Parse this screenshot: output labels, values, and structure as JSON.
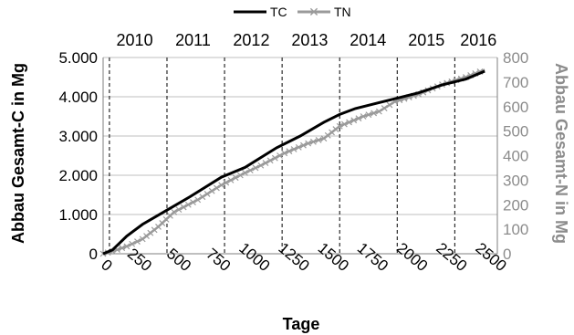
{
  "chart_data": {
    "type": "line",
    "title": "",
    "xlabel": "Tage",
    "ylabel_left": "Abbau Gesamt-C in Mg",
    "ylabel_right": "Abbau Gesamt-N in Mg",
    "xlim": [
      0,
      2500
    ],
    "ylim_left": [
      0,
      5000
    ],
    "ylim_right": [
      0,
      800
    ],
    "x_ticks": [
      0,
      250,
      500,
      750,
      1000,
      1250,
      1500,
      1750,
      2000,
      2250,
      2500
    ],
    "x_tick_labels": [
      "0",
      "250",
      "500",
      "750",
      "1000",
      "1250",
      "1500",
      "1750",
      "2000",
      "2250",
      "2500"
    ],
    "y_left_ticks": [
      0,
      1000,
      2000,
      3000,
      4000,
      5000
    ],
    "y_left_tick_labels": [
      "0",
      "1.000",
      "2.000",
      "3.000",
      "4.000",
      "5.000"
    ],
    "y_right_ticks": [
      0,
      100,
      200,
      300,
      400,
      500,
      600,
      700,
      800
    ],
    "y_right_tick_labels": [
      "0",
      "100",
      "200",
      "300",
      "400",
      "500",
      "600",
      "700",
      "800"
    ],
    "grid": "horizontal",
    "legend_position": "top-center",
    "year_boundaries": [
      40,
      405,
      770,
      1135,
      1500,
      1865,
      2230
    ],
    "year_labels": [
      {
        "label": "2010",
        "x": 200
      },
      {
        "label": "2011",
        "x": 570
      },
      {
        "label": "2012",
        "x": 940
      },
      {
        "label": "2013",
        "x": 1310
      },
      {
        "label": "2014",
        "x": 1680
      },
      {
        "label": "2015",
        "x": 2050
      },
      {
        "label": "2016",
        "x": 2380
      }
    ],
    "colors": {
      "TC": "#000000",
      "TN": "#9a9a9a"
    },
    "series": [
      {
        "name": "TC",
        "axis": "left",
        "x": [
          0,
          60,
          150,
          250,
          400,
          550,
          750,
          900,
          1000,
          1100,
          1250,
          1400,
          1500,
          1600,
          1750,
          1850,
          2000,
          2150,
          2300,
          2420
        ],
        "values": [
          0,
          100,
          450,
          750,
          1100,
          1450,
          1950,
          2200,
          2450,
          2700,
          3000,
          3350,
          3550,
          3700,
          3850,
          3950,
          4100,
          4300,
          4450,
          4650
        ]
      },
      {
        "name": "TN",
        "axis": "right",
        "x": [
          0,
          60,
          150,
          250,
          350,
          450,
          600,
          750,
          900,
          1000,
          1150,
          1300,
          1400,
          1500,
          1650,
          1750,
          1850,
          2000,
          2150,
          2300,
          2420
        ],
        "values": [
          0,
          10,
          30,
          60,
          110,
          170,
          220,
          280,
          330,
          360,
          410,
          450,
          470,
          520,
          560,
          580,
          620,
          650,
          690,
          720,
          750
        ]
      }
    ]
  }
}
